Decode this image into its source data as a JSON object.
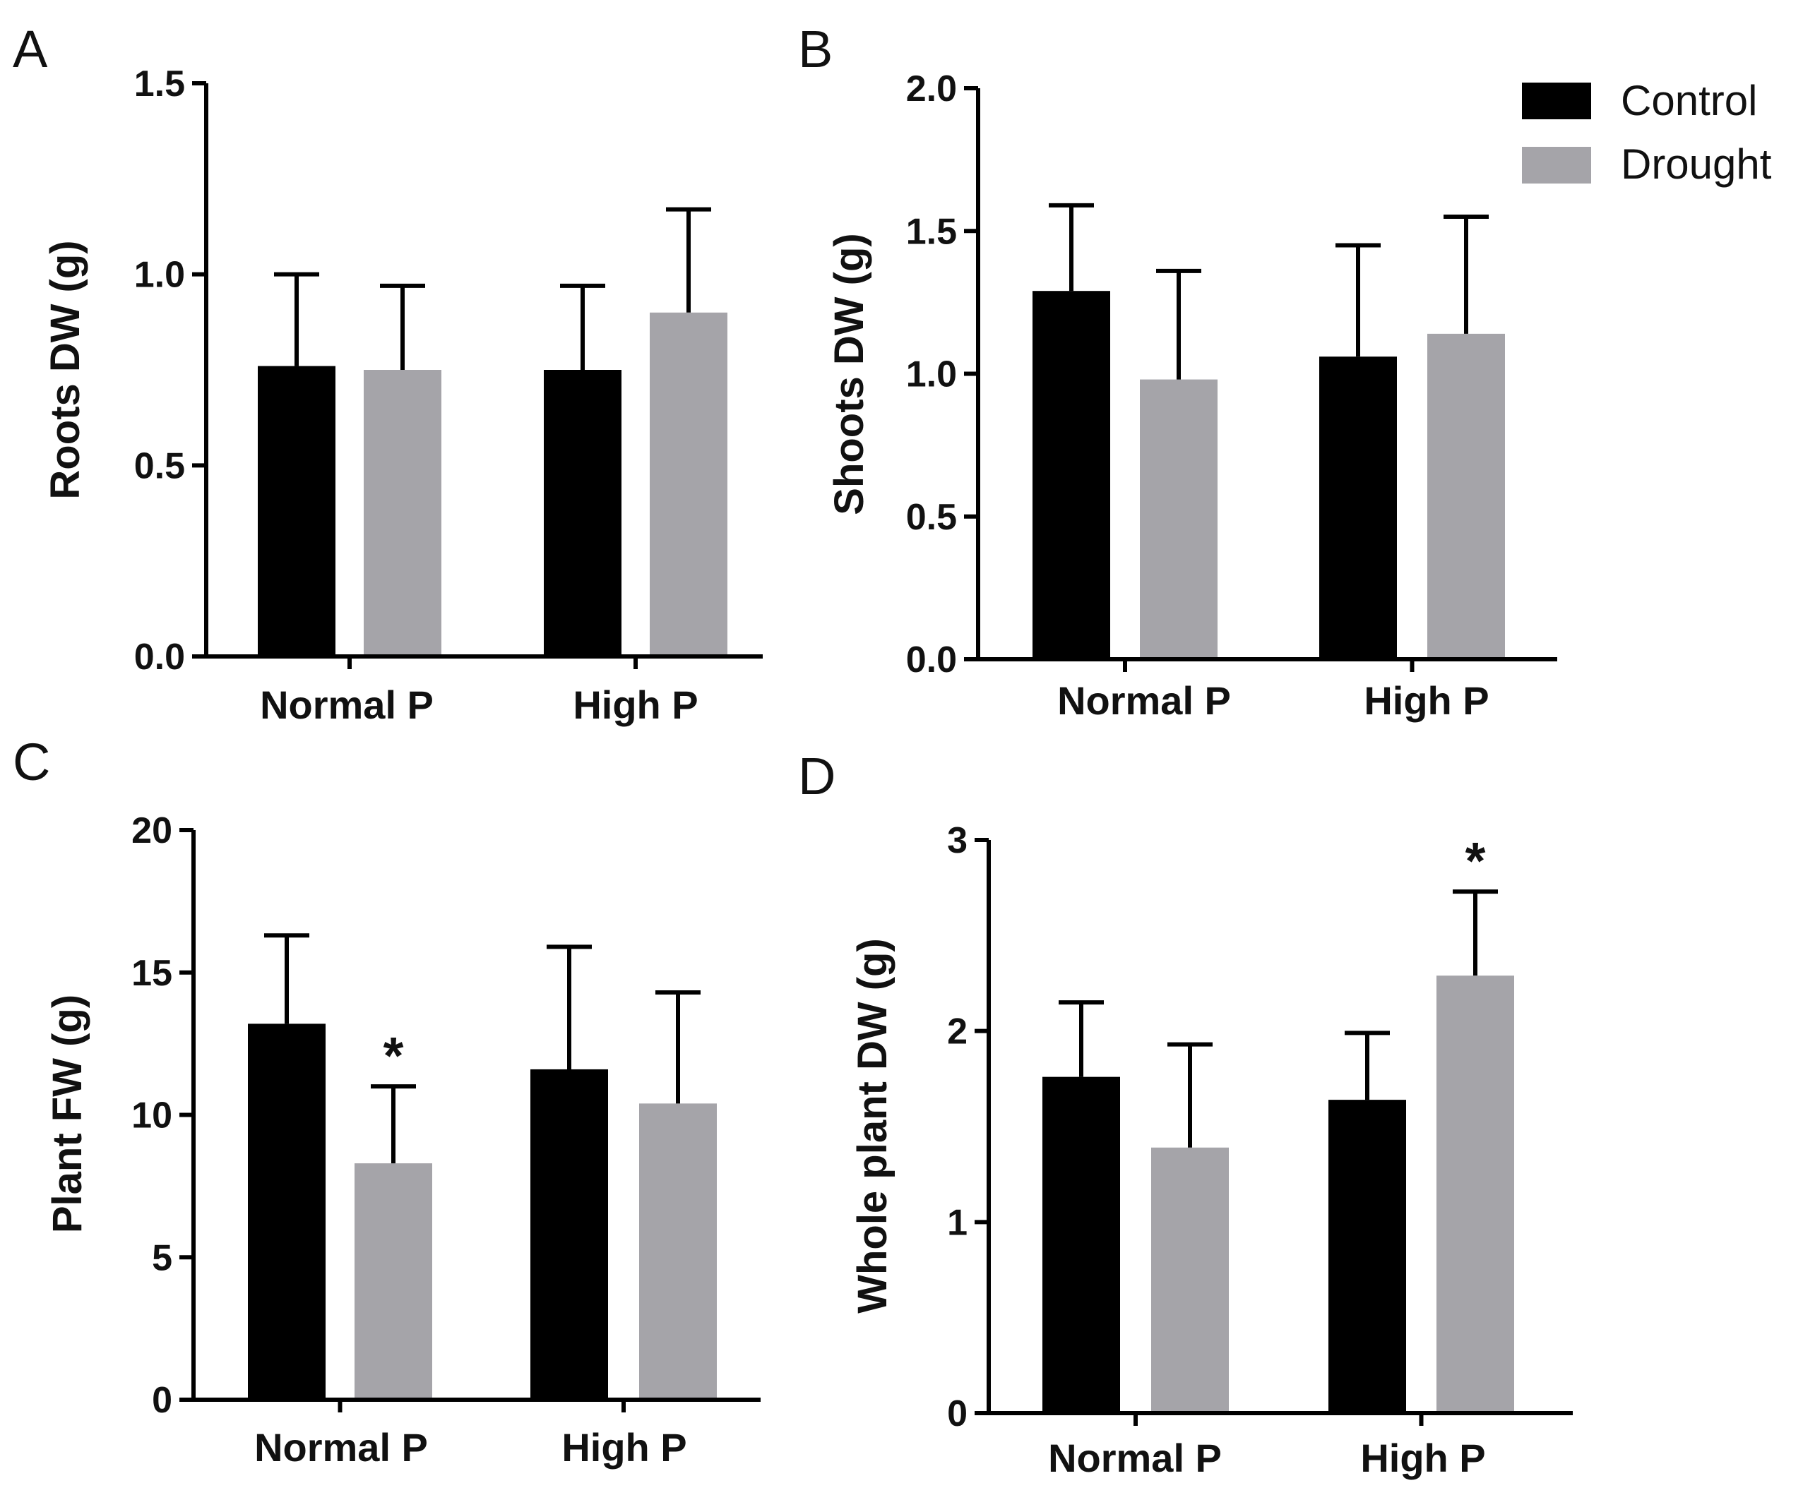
{
  "figure": {
    "legend": {
      "entries": [
        {
          "name": "Control",
          "color": "#000000"
        },
        {
          "name": "Drought",
          "color": "#a5a4a9"
        }
      ],
      "placement": "top-right"
    }
  },
  "chart_data": [
    {
      "type": "bar",
      "panel": "A",
      "title": "",
      "ylabel": "Roots DW (g)",
      "xlabel": "",
      "categories": [
        "Normal P",
        "High P"
      ],
      "ylim": [
        0,
        1.5
      ],
      "yticks": [
        "0.0",
        "0.5",
        "1.0",
        "1.5"
      ],
      "tick_values": [
        0,
        0.5,
        1.0,
        1.5
      ],
      "series": [
        {
          "name": "Control",
          "color": "#000000",
          "values": [
            0.76,
            0.75
          ],
          "errors": [
            0.24,
            0.22
          ]
        },
        {
          "name": "Drought",
          "color": "#a5a4a9",
          "values": [
            0.75,
            0.9
          ],
          "errors": [
            0.22,
            0.27
          ]
        }
      ],
      "significance": []
    },
    {
      "type": "bar",
      "panel": "B",
      "title": "",
      "ylabel": "Shoots DW (g)",
      "xlabel": "",
      "categories": [
        "Normal P",
        "High P"
      ],
      "ylim": [
        0,
        2.0
      ],
      "yticks": [
        "0.0",
        "0.5",
        "1.0",
        "1.5",
        "2.0"
      ],
      "tick_values": [
        0,
        0.5,
        1.0,
        1.5,
        2.0
      ],
      "series": [
        {
          "name": "Control",
          "color": "#000000",
          "values": [
            1.29,
            1.06
          ],
          "errors": [
            0.3,
            0.39
          ]
        },
        {
          "name": "Drought",
          "color": "#a5a4a9",
          "values": [
            0.98,
            1.14
          ],
          "errors": [
            0.38,
            0.41
          ]
        }
      ],
      "significance": []
    },
    {
      "type": "bar",
      "panel": "C",
      "title": "",
      "ylabel": "Plant FW (g)",
      "xlabel": "",
      "categories": [
        "Normal P",
        "High P"
      ],
      "ylim": [
        0,
        20
      ],
      "yticks": [
        "0",
        "5",
        "10",
        "15",
        "20"
      ],
      "tick_values": [
        0,
        5,
        10,
        15,
        20
      ],
      "series": [
        {
          "name": "Control",
          "color": "#000000",
          "values": [
            13.2,
            11.6
          ],
          "errors": [
            3.1,
            4.3
          ]
        },
        {
          "name": "Drought",
          "color": "#a5a4a9",
          "values": [
            8.3,
            10.4
          ],
          "errors": [
            2.7,
            3.9
          ]
        }
      ],
      "significance": [
        {
          "series": "Drought",
          "category": "Normal P",
          "label": "*"
        }
      ]
    },
    {
      "type": "bar",
      "panel": "D",
      "title": "",
      "ylabel": "Whole plant DW (g)",
      "xlabel": "",
      "categories": [
        "Normal P",
        "High P"
      ],
      "ylim": [
        0,
        3
      ],
      "yticks": [
        "0",
        "1",
        "2",
        "3"
      ],
      "tick_values": [
        0,
        1,
        2,
        3
      ],
      "series": [
        {
          "name": "Control",
          "color": "#000000",
          "values": [
            1.76,
            1.64
          ],
          "errors": [
            0.39,
            0.35
          ]
        },
        {
          "name": "Drought",
          "color": "#a5a4a9",
          "values": [
            1.39,
            2.29
          ],
          "errors": [
            0.54,
            0.44
          ]
        }
      ],
      "significance": [
        {
          "series": "Drought",
          "category": "High P",
          "label": "*"
        }
      ]
    }
  ]
}
